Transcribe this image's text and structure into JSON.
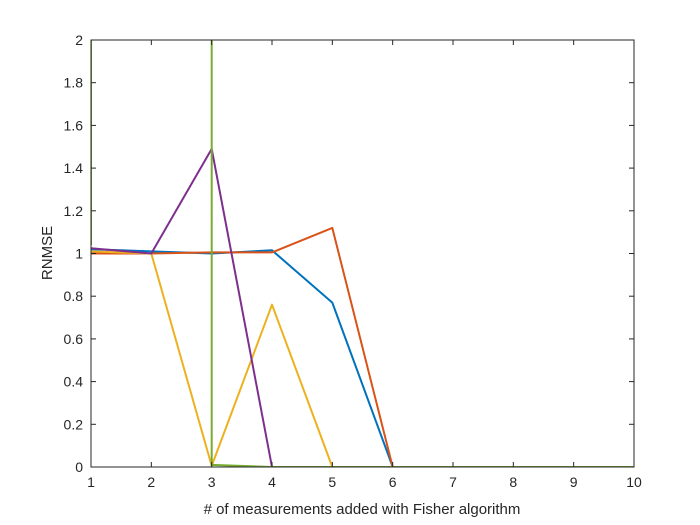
{
  "chart_data": {
    "type": "line",
    "xlabel": "# of measurements added with Fisher algorithm",
    "ylabel": "RNMSE",
    "xlim": [
      1,
      10
    ],
    "ylim": [
      0,
      2
    ],
    "xticks": [
      "1",
      "2",
      "3",
      "4",
      "5",
      "6",
      "7",
      "8",
      "9",
      "10"
    ],
    "yticks": [
      "0",
      "0.2",
      "0.4",
      "0.6",
      "0.8",
      "1",
      "1.2",
      "1.4",
      "1.6",
      "1.8",
      "2"
    ],
    "grid": false,
    "series": [
      {
        "color": "#0072BD",
        "x": [
          1,
          2,
          3,
          4,
          5,
          6,
          7,
          8,
          9,
          10
        ],
        "y": [
          1.02,
          1.01,
          1.0,
          1.015,
          0.77,
          0,
          0,
          0,
          0,
          0
        ]
      },
      {
        "color": "#D95319",
        "x": [
          1,
          2,
          3,
          4,
          5,
          6,
          7,
          8,
          9,
          10
        ],
        "y": [
          1.0,
          1.0,
          1.005,
          1.005,
          1.12,
          0,
          0,
          0,
          0,
          0
        ]
      },
      {
        "color": "#EDB120",
        "x": [
          1,
          2,
          3,
          4,
          5,
          6,
          7,
          8,
          9,
          10
        ],
        "y": [
          1.01,
          1.0,
          0.005,
          0.76,
          0,
          0,
          0,
          0,
          0,
          0
        ]
      },
      {
        "color": "#7E2F8E",
        "x": [
          1,
          2,
          3,
          4,
          5,
          6,
          7,
          8,
          9,
          10
        ],
        "y": [
          1.025,
          1.0,
          1.49,
          0,
          0,
          0,
          0,
          0,
          0,
          0
        ]
      },
      {
        "color": "#77AC30",
        "x": [
          1,
          1,
          3,
          3,
          4,
          5,
          6,
          7,
          8,
          9,
          10
        ],
        "y": [
          1.04,
          2.2,
          2.2,
          0.01,
          0,
          0,
          0,
          0,
          0,
          0,
          0
        ]
      }
    ]
  }
}
